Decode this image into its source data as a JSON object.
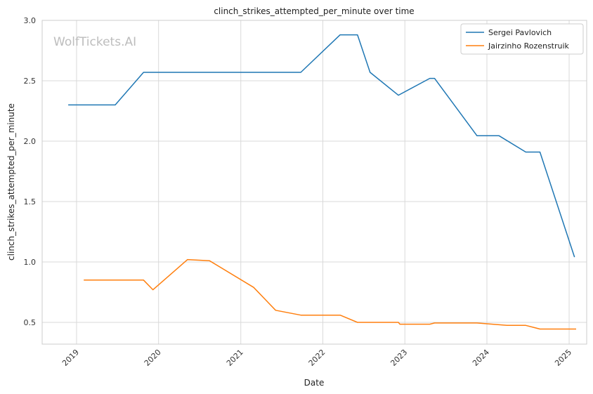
{
  "chart_data": {
    "type": "line",
    "title": "clinch_strikes_attempted_per_minute over time",
    "xlabel": "Date",
    "ylabel": "clinch_strikes_attempted_per_minute",
    "watermark": "WolfTickets.AI",
    "xlim": [
      "2018-08-01",
      "2025-03-20"
    ],
    "ylim": [
      0.32,
      3.0
    ],
    "yticks": [
      0.5,
      1.0,
      1.5,
      2.0,
      2.5,
      3.0
    ],
    "ytick_labels": [
      "0.5",
      "1.0",
      "1.5",
      "2.0",
      "2.5",
      "3.0"
    ],
    "xticks": [
      "2019-01-01",
      "2020-01-01",
      "2021-01-01",
      "2022-01-01",
      "2023-01-01",
      "2024-01-01",
      "2025-01-01"
    ],
    "xtick_labels": [
      "2019",
      "2020",
      "2021",
      "2022",
      "2023",
      "2024",
      "2025"
    ],
    "grid": true,
    "legend_position": "top-right",
    "series": [
      {
        "name": "Sergei Pavlovich",
        "color": "#1f77b4",
        "x": [
          "2018-11-25",
          "2019-06-22",
          "2019-10-26",
          "2020-08-15",
          "2021-09-25",
          "2022-03-19",
          "2022-06-04",
          "2022-07-30",
          "2022-12-03",
          "2023-04-22",
          "2023-05-13",
          "2023-11-18",
          "2024-02-24",
          "2024-06-22",
          "2024-08-24",
          "2025-01-25"
        ],
        "values": [
          2.3,
          2.3,
          2.57,
          2.57,
          2.57,
          2.88,
          2.88,
          2.57,
          2.38,
          2.52,
          2.52,
          2.045,
          2.045,
          1.91,
          1.91,
          1.04
        ]
      },
      {
        "name": "Jairzinho Rozenstruik",
        "color": "#ff7f0e",
        "x": [
          "2019-02-02",
          "2019-05-04",
          "2019-10-26",
          "2019-12-07",
          "2020-05-09",
          "2020-08-15",
          "2021-02-27",
          "2021-06-05",
          "2021-09-25",
          "2022-03-19",
          "2022-06-04",
          "2022-12-03",
          "2022-12-10",
          "2023-04-22",
          "2023-05-13",
          "2023-11-18",
          "2024-03-30",
          "2024-06-22",
          "2024-08-24",
          "2025-02-01"
        ],
        "values": [
          0.85,
          0.85,
          0.85,
          0.77,
          1.02,
          1.01,
          0.79,
          0.6,
          0.56,
          0.56,
          0.5,
          0.5,
          0.485,
          0.485,
          0.495,
          0.495,
          0.475,
          0.475,
          0.445,
          0.445
        ]
      }
    ]
  }
}
